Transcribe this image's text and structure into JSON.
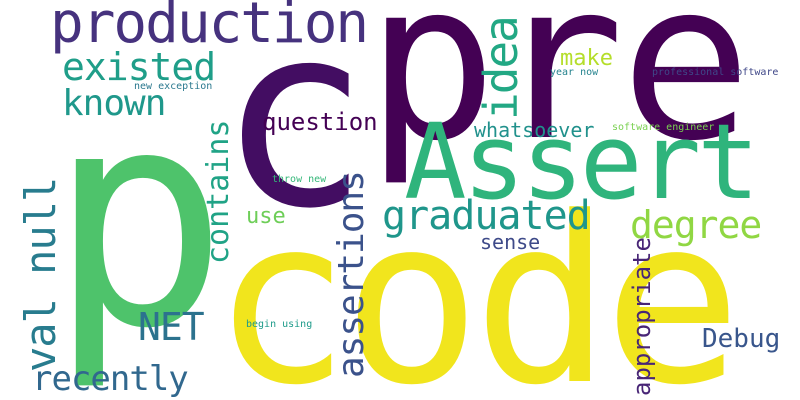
{
  "words": {
    "pre": {
      "text": "pre",
      "color": "#440154"
    },
    "p": {
      "text": "p",
      "color": "#4ec36b"
    },
    "c": {
      "text": "c",
      "color": "#430d62"
    },
    "code": {
      "text": "code",
      "color": "#f1e51d"
    },
    "assert": {
      "text": "Assert",
      "color": "#2fb47c"
    },
    "production": {
      "text": "production",
      "color": "#46327e"
    },
    "existed": {
      "text": "existed",
      "color": "#1f9e89"
    },
    "known": {
      "text": "known",
      "color": "#1f988b"
    },
    "val_null": {
      "text": "val null",
      "color": "#287c8e"
    },
    "idea": {
      "text": "idea",
      "color": "#22a884"
    },
    "make": {
      "text": "make",
      "color": "#b5de2b"
    },
    "question": {
      "text": "question",
      "color": "#440154"
    },
    "contains": {
      "text": "contains",
      "color": "#20a386"
    },
    "assertions": {
      "text": "assertions",
      "color": "#3b528b"
    },
    "graduated": {
      "text": "graduated",
      "color": "#1f968b"
    },
    "degree": {
      "text": "degree",
      "color": "#90d743"
    },
    "whatsoever": {
      "text": "whatsoever",
      "color": "#21918c"
    },
    "use": {
      "text": "use",
      "color": "#6ece58"
    },
    "sense": {
      "text": "sense",
      "color": "#3e4a89"
    },
    "net": {
      "text": "NET",
      "color": "#2c728e"
    },
    "appropriate": {
      "text": "appropriate",
      "color": "#482576"
    },
    "debug": {
      "text": "Debug",
      "color": "#39568c"
    },
    "recently": {
      "text": "recently",
      "color": "#31688e"
    },
    "new_exception": {
      "text": "new exception",
      "color": "#2a788e"
    },
    "year_now": {
      "text": "year now",
      "color": "#25838e"
    },
    "professional_software": {
      "text": "professional software",
      "color": "#3f4788"
    },
    "software_engineer": {
      "text": "software engineer",
      "color": "#7ad151"
    },
    "throw_new": {
      "text": "throw new",
      "color": "#35b779"
    },
    "begin_using": {
      "text": "begin using",
      "color": "#1e9b8a"
    }
  }
}
